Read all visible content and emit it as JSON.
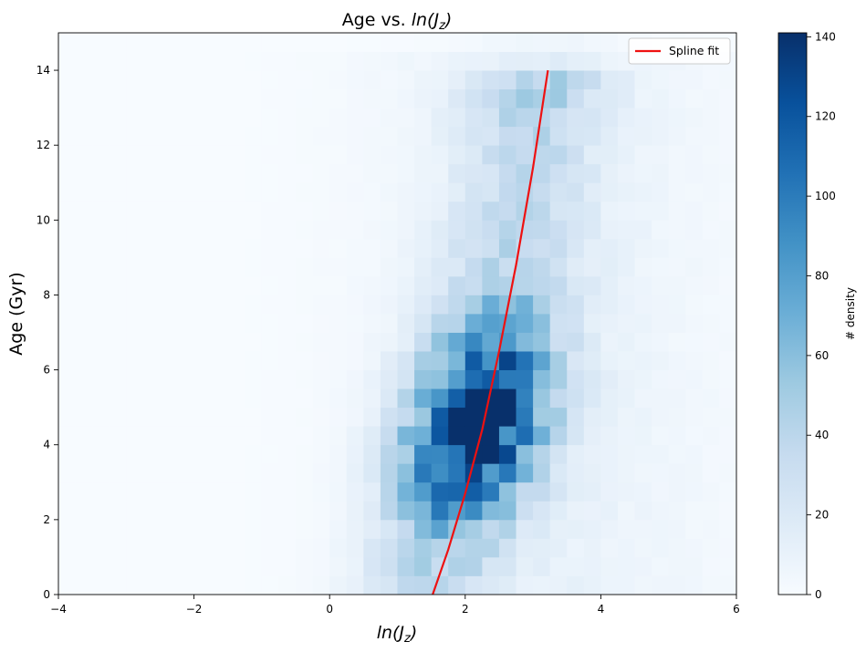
{
  "chart_data": {
    "type": "heatmap",
    "title": "Age vs. ln(J_z)",
    "title_parts": {
      "prefix": "Age vs. ",
      "ln": "ln",
      "open": "(J",
      "sub": "z",
      "close": ")"
    },
    "xlabel_parts": {
      "ln": "ln",
      "open": "(J",
      "sub": "z",
      "close": ")"
    },
    "ylabel": "Age (Gyr)",
    "xlim": [
      -4,
      6
    ],
    "ylim": [
      0,
      15
    ],
    "x_ticks": [
      -4,
      -2,
      0,
      2,
      4,
      6
    ],
    "y_ticks": [
      0,
      2,
      4,
      6,
      8,
      10,
      12,
      14
    ],
    "x_bins": 40,
    "y_bins": 30,
    "x_bin_width": 0.25,
    "y_bin_width": 0.5,
    "colormap": "Blues",
    "colorbar": {
      "label": "# density",
      "min": 0,
      "max": 141,
      "ticks": [
        0,
        20,
        40,
        60,
        80,
        100,
        120,
        140
      ]
    },
    "density_model": {
      "description": "approximate 2D histogram; ridge follows spline",
      "peak_bins": [
        {
          "x": 2.625,
          "y": 4.75,
          "value": 141
        },
        {
          "x": 2.625,
          "y": 3.75,
          "value": 128
        },
        {
          "x": 2.375,
          "y": 5.75,
          "value": 118
        }
      ]
    },
    "series": [
      {
        "name": "Spline fit",
        "type": "line",
        "color": "#ee1111",
        "x": [
          1.52,
          1.75,
          2.0,
          2.25,
          2.5,
          2.75,
          3.0,
          3.22
        ],
        "y": [
          0,
          1.2,
          2.7,
          4.4,
          6.5,
          8.8,
          11.4,
          14.0
        ]
      }
    ],
    "legend": {
      "placement": "top-right",
      "entries": [
        "Spline fit"
      ]
    },
    "grid": false
  }
}
